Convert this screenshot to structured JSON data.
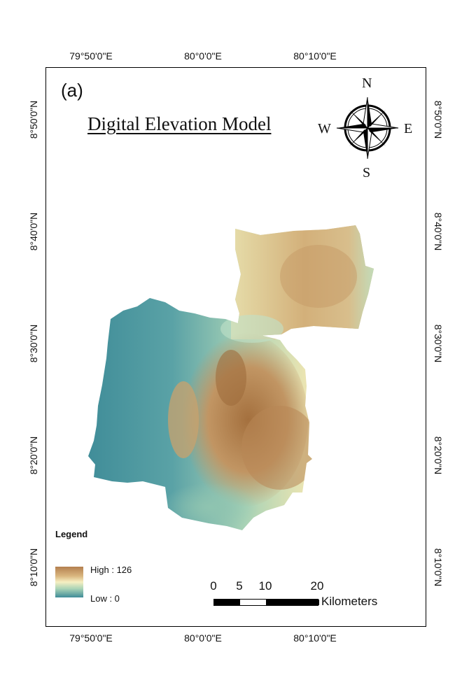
{
  "panel_label": "(a)",
  "title": "Digital Elevation Model",
  "graticule": {
    "longitudes": [
      "79°50'0\"E",
      "80°0'0\"E",
      "80°10'0\"E"
    ],
    "latitudes": [
      "8°50'0\"N",
      "8°40'0\"N",
      "8°30'0\"N",
      "8°20'0\"N",
      "8°10'0\"N"
    ]
  },
  "compass": {
    "n": "N",
    "s": "S",
    "e": "E",
    "w": "W"
  },
  "legend": {
    "title": "Legend",
    "high_label": "High : 126",
    "low_label": "Low : 0",
    "high_value": 126,
    "low_value": 0,
    "colors": {
      "high": "#b47f4f",
      "mid": "#f6efc2",
      "low": "#3f8c98"
    }
  },
  "scalebar": {
    "ticks": [
      "0",
      "5",
      "10",
      "20"
    ],
    "unit": "Kilometers"
  }
}
